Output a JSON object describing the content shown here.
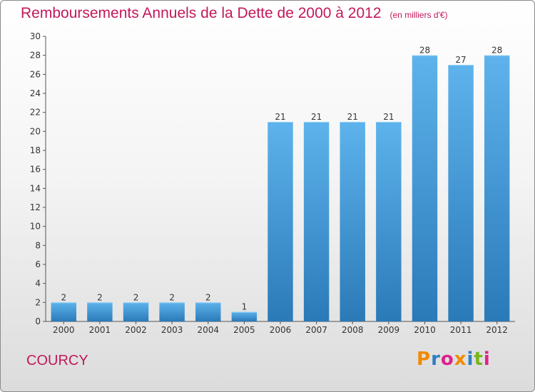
{
  "title": "Remboursements Annuels de la Dette de 2000 à 2012",
  "unit": "(en milliers d'€)",
  "commune": "COURCY",
  "brand": "Proxiti",
  "brand_colors": [
    "#f08a00",
    "#2e7fc1",
    "#e0208c",
    "#f08a00",
    "#2e7fc1",
    "#7ab51d",
    "#e0208c"
  ],
  "colors": {
    "bar_top": "#5eb3ec",
    "bar_bottom": "#2a7ab8",
    "title": "#c2185b"
  },
  "chart_data": {
    "type": "bar",
    "title": "Remboursements Annuels de la Dette de 2000 à 2012",
    "xlabel": "",
    "ylabel": "",
    "categories": [
      "2000",
      "2001",
      "2002",
      "2003",
      "2004",
      "2005",
      "2006",
      "2007",
      "2008",
      "2009",
      "2010",
      "2011",
      "2012"
    ],
    "values": [
      2,
      2,
      2,
      2,
      2,
      1,
      21,
      21,
      21,
      21,
      28,
      27,
      28
    ],
    "ylim": [
      0,
      30
    ],
    "yticks": [
      0,
      2,
      4,
      6,
      8,
      10,
      12,
      14,
      16,
      18,
      20,
      22,
      24,
      26,
      28,
      30
    ],
    "grid": false,
    "legend": "none"
  }
}
